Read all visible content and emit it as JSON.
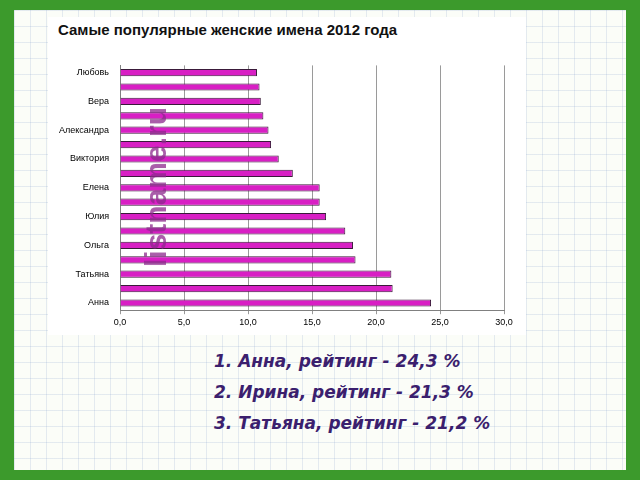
{
  "chart_data": {
    "type": "bar",
    "orientation": "horizontal",
    "title": "Самые популярные женские имена 2012 года",
    "watermark": "listname.ru",
    "annotations": [
      "1. Анна, рейтинг - 24,3 %",
      "2. Ирина, рейтинг - 21,3 %",
      "3. Татьяна, рейтинг - 21,2 %"
    ],
    "categories": [
      "Любовь",
      null,
      "Вера",
      null,
      "Александра",
      null,
      "Виктория",
      null,
      "Елена",
      null,
      "Юлия",
      null,
      "Ольга",
      null,
      "Татьяна",
      null,
      "Анна"
    ],
    "values": [
      10.7,
      10.9,
      11.0,
      11.2,
      11.6,
      11.8,
      12.4,
      13.5,
      15.6,
      15.6,
      16.1,
      17.6,
      18.2,
      18.4,
      21.2,
      21.3,
      24.3
    ],
    "color": "#d81fc4",
    "xlim": [
      0,
      30
    ],
    "xticks": [
      {
        "value": 0,
        "label": "0,0"
      },
      {
        "value": 5,
        "label": "5,0"
      },
      {
        "value": 10,
        "label": "10,0"
      },
      {
        "value": 15,
        "label": "15,0"
      },
      {
        "value": 20,
        "label": "20,0"
      },
      {
        "value": 25,
        "label": "25,0"
      },
      {
        "value": 30,
        "label": "30,0"
      }
    ],
    "grid": true
  }
}
